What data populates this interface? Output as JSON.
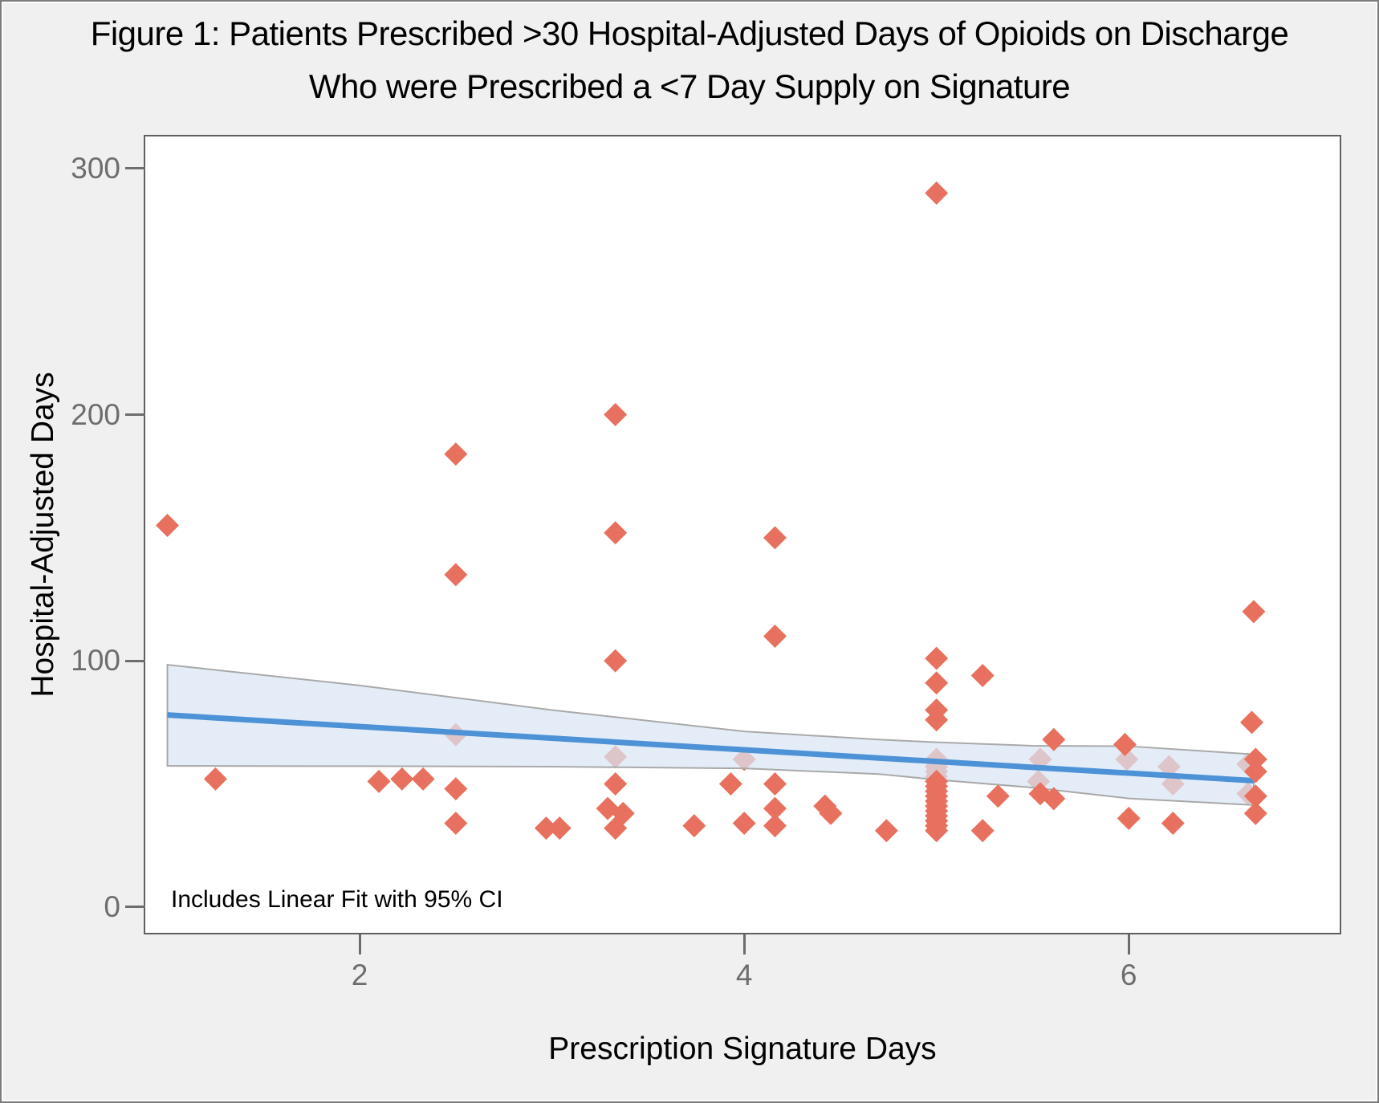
{
  "chart_data": {
    "type": "scatter",
    "title_lines": [
      "Figure 1: Patients Prescribed >30 Hospital-Adjusted Days of Opioids on Discharge",
      "Who were Prescribed a <7 Day Supply on Signature"
    ],
    "xlabel": "Prescription Signature Days",
    "ylabel": "Hospital-Adjusted Days",
    "annotation": "Includes Linear Fit with 95% CI",
    "marker": "diamond",
    "grid": false,
    "legend": "none",
    "xlim": [
      0.885,
      7.097
    ],
    "ylim": [
      -10.5,
      313
    ],
    "xticks": [
      2,
      4,
      6
    ],
    "yticks": [
      0,
      100,
      200,
      300
    ],
    "points": [
      [
        1.0,
        155
      ],
      [
        1.25,
        52
      ],
      [
        2.1,
        51
      ],
      [
        2.22,
        52
      ],
      [
        2.33,
        52
      ],
      [
        2.5,
        184
      ],
      [
        2.5,
        135
      ],
      [
        2.5,
        70
      ],
      [
        2.5,
        48
      ],
      [
        2.5,
        34
      ],
      [
        2.97,
        32
      ],
      [
        3.04,
        32
      ],
      [
        3.29,
        40
      ],
      [
        3.33,
        200
      ],
      [
        3.33,
        152
      ],
      [
        3.33,
        100
      ],
      [
        3.33,
        61
      ],
      [
        3.33,
        50
      ],
      [
        3.33,
        32
      ],
      [
        3.37,
        38
      ],
      [
        3.74,
        33
      ],
      [
        3.93,
        50
      ],
      [
        4.0,
        60
      ],
      [
        4.0,
        34
      ],
      [
        4.16,
        150
      ],
      [
        4.16,
        110
      ],
      [
        4.16,
        50
      ],
      [
        4.16,
        40
      ],
      [
        4.16,
        33
      ],
      [
        4.42,
        41
      ],
      [
        4.45,
        38
      ],
      [
        4.74,
        31
      ],
      [
        5.0,
        290
      ],
      [
        5.0,
        101
      ],
      [
        5.0,
        91
      ],
      [
        5.0,
        80
      ],
      [
        5.0,
        76
      ],
      [
        5.0,
        60
      ],
      [
        5.0,
        59
      ],
      [
        5.0,
        57
      ],
      [
        5.0,
        55
      ],
      [
        5.0,
        53
      ],
      [
        5.0,
        51
      ],
      [
        5.0,
        49
      ],
      [
        5.0,
        47
      ],
      [
        5.0,
        45
      ],
      [
        5.0,
        43
      ],
      [
        5.0,
        41
      ],
      [
        5.0,
        39
      ],
      [
        5.0,
        37
      ],
      [
        5.0,
        35
      ],
      [
        5.0,
        33
      ],
      [
        5.0,
        31
      ],
      [
        5.24,
        94
      ],
      [
        5.24,
        31
      ],
      [
        5.32,
        45
      ],
      [
        5.53,
        51
      ],
      [
        5.54,
        60
      ],
      [
        5.54,
        46
      ],
      [
        5.61,
        68
      ],
      [
        5.61,
        44
      ],
      [
        5.98,
        66
      ],
      [
        5.99,
        60
      ],
      [
        6.0,
        36
      ],
      [
        6.21,
        57
      ],
      [
        6.23,
        50
      ],
      [
        6.23,
        34
      ],
      [
        6.62,
        58
      ],
      [
        6.62,
        46
      ],
      [
        6.64,
        75
      ],
      [
        6.65,
        120
      ],
      [
        6.66,
        60
      ],
      [
        6.66,
        55
      ],
      [
        6.66,
        45
      ],
      [
        6.66,
        38
      ]
    ],
    "fit_line": {
      "x1": 1.0,
      "y1": 78,
      "x2": 6.65,
      "y2": 51.3
    },
    "ci_band": {
      "level": "95%",
      "x": [
        1.0,
        2.0,
        3.0,
        4.0,
        4.7,
        5.0,
        5.5,
        6.0,
        6.65
      ],
      "upper": [
        98.4,
        90.0,
        80.0,
        71.3,
        68.0,
        66.9,
        65.5,
        65.3,
        62.0
      ],
      "lower": [
        57.3,
        57.2,
        57.0,
        56.3,
        54.0,
        51.7,
        48.5,
        44.1,
        41.4
      ]
    },
    "colors": {
      "marker": "#E8705E",
      "fit_line": "#4D92D6",
      "band_fill": "#D9E6F4",
      "band_edge": "#A9A9A9",
      "figure_background": "#F0F0F0",
      "plot_background": "#FFFFFF",
      "plot_border": "#5F5F5F",
      "tick": "#6D6D6D",
      "text": "#000000"
    }
  }
}
